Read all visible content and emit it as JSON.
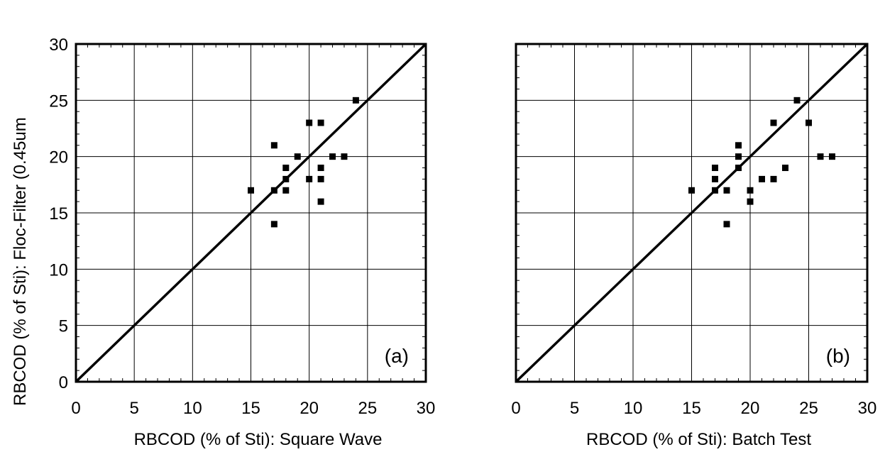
{
  "chart_data": [
    {
      "type": "scatter",
      "panel_label": "(a)",
      "xlabel": "RBCOD (% of Sti): Square Wave",
      "ylabel": "RBCOD (% of Sti): Floc-Filter (0.45um",
      "xlim": [
        0,
        30
      ],
      "ylim": [
        0,
        30
      ],
      "xticks": [
        "0",
        "5",
        "10",
        "15",
        "20",
        "25",
        "30"
      ],
      "yticks": [
        "0",
        "5",
        "10",
        "15",
        "20",
        "25",
        "30"
      ],
      "grid": true,
      "reference_line": {
        "type": "y=x"
      },
      "points": [
        {
          "x": 15,
          "y": 17
        },
        {
          "x": 17,
          "y": 21
        },
        {
          "x": 17,
          "y": 17
        },
        {
          "x": 17,
          "y": 14
        },
        {
          "x": 18,
          "y": 19
        },
        {
          "x": 18,
          "y": 18
        },
        {
          "x": 18,
          "y": 17
        },
        {
          "x": 19,
          "y": 20
        },
        {
          "x": 20,
          "y": 23
        },
        {
          "x": 20,
          "y": 18
        },
        {
          "x": 21,
          "y": 23
        },
        {
          "x": 21,
          "y": 19
        },
        {
          "x": 21,
          "y": 18
        },
        {
          "x": 21,
          "y": 16
        },
        {
          "x": 22,
          "y": 20
        },
        {
          "x": 23,
          "y": 20
        },
        {
          "x": 24,
          "y": 25
        }
      ]
    },
    {
      "type": "scatter",
      "panel_label": "(b)",
      "xlabel": "RBCOD (% of Sti): Batch Test",
      "ylabel": "",
      "xlim": [
        0,
        30
      ],
      "ylim": [
        0,
        30
      ],
      "xticks": [
        "0",
        "5",
        "10",
        "15",
        "20",
        "25",
        "30"
      ],
      "yticks": [],
      "grid": true,
      "reference_line": {
        "type": "y=x"
      },
      "points": [
        {
          "x": 15,
          "y": 17
        },
        {
          "x": 17,
          "y": 19
        },
        {
          "x": 17,
          "y": 18
        },
        {
          "x": 17,
          "y": 17
        },
        {
          "x": 18,
          "y": 17
        },
        {
          "x": 18,
          "y": 14
        },
        {
          "x": 19,
          "y": 21
        },
        {
          "x": 19,
          "y": 20
        },
        {
          "x": 19,
          "y": 19
        },
        {
          "x": 20,
          "y": 17
        },
        {
          "x": 20,
          "y": 16
        },
        {
          "x": 21,
          "y": 18
        },
        {
          "x": 22,
          "y": 23
        },
        {
          "x": 22,
          "y": 18
        },
        {
          "x": 23,
          "y": 19
        },
        {
          "x": 24,
          "y": 25
        },
        {
          "x": 25,
          "y": 23
        },
        {
          "x": 26,
          "y": 20
        },
        {
          "x": 27,
          "y": 20
        }
      ]
    }
  ]
}
